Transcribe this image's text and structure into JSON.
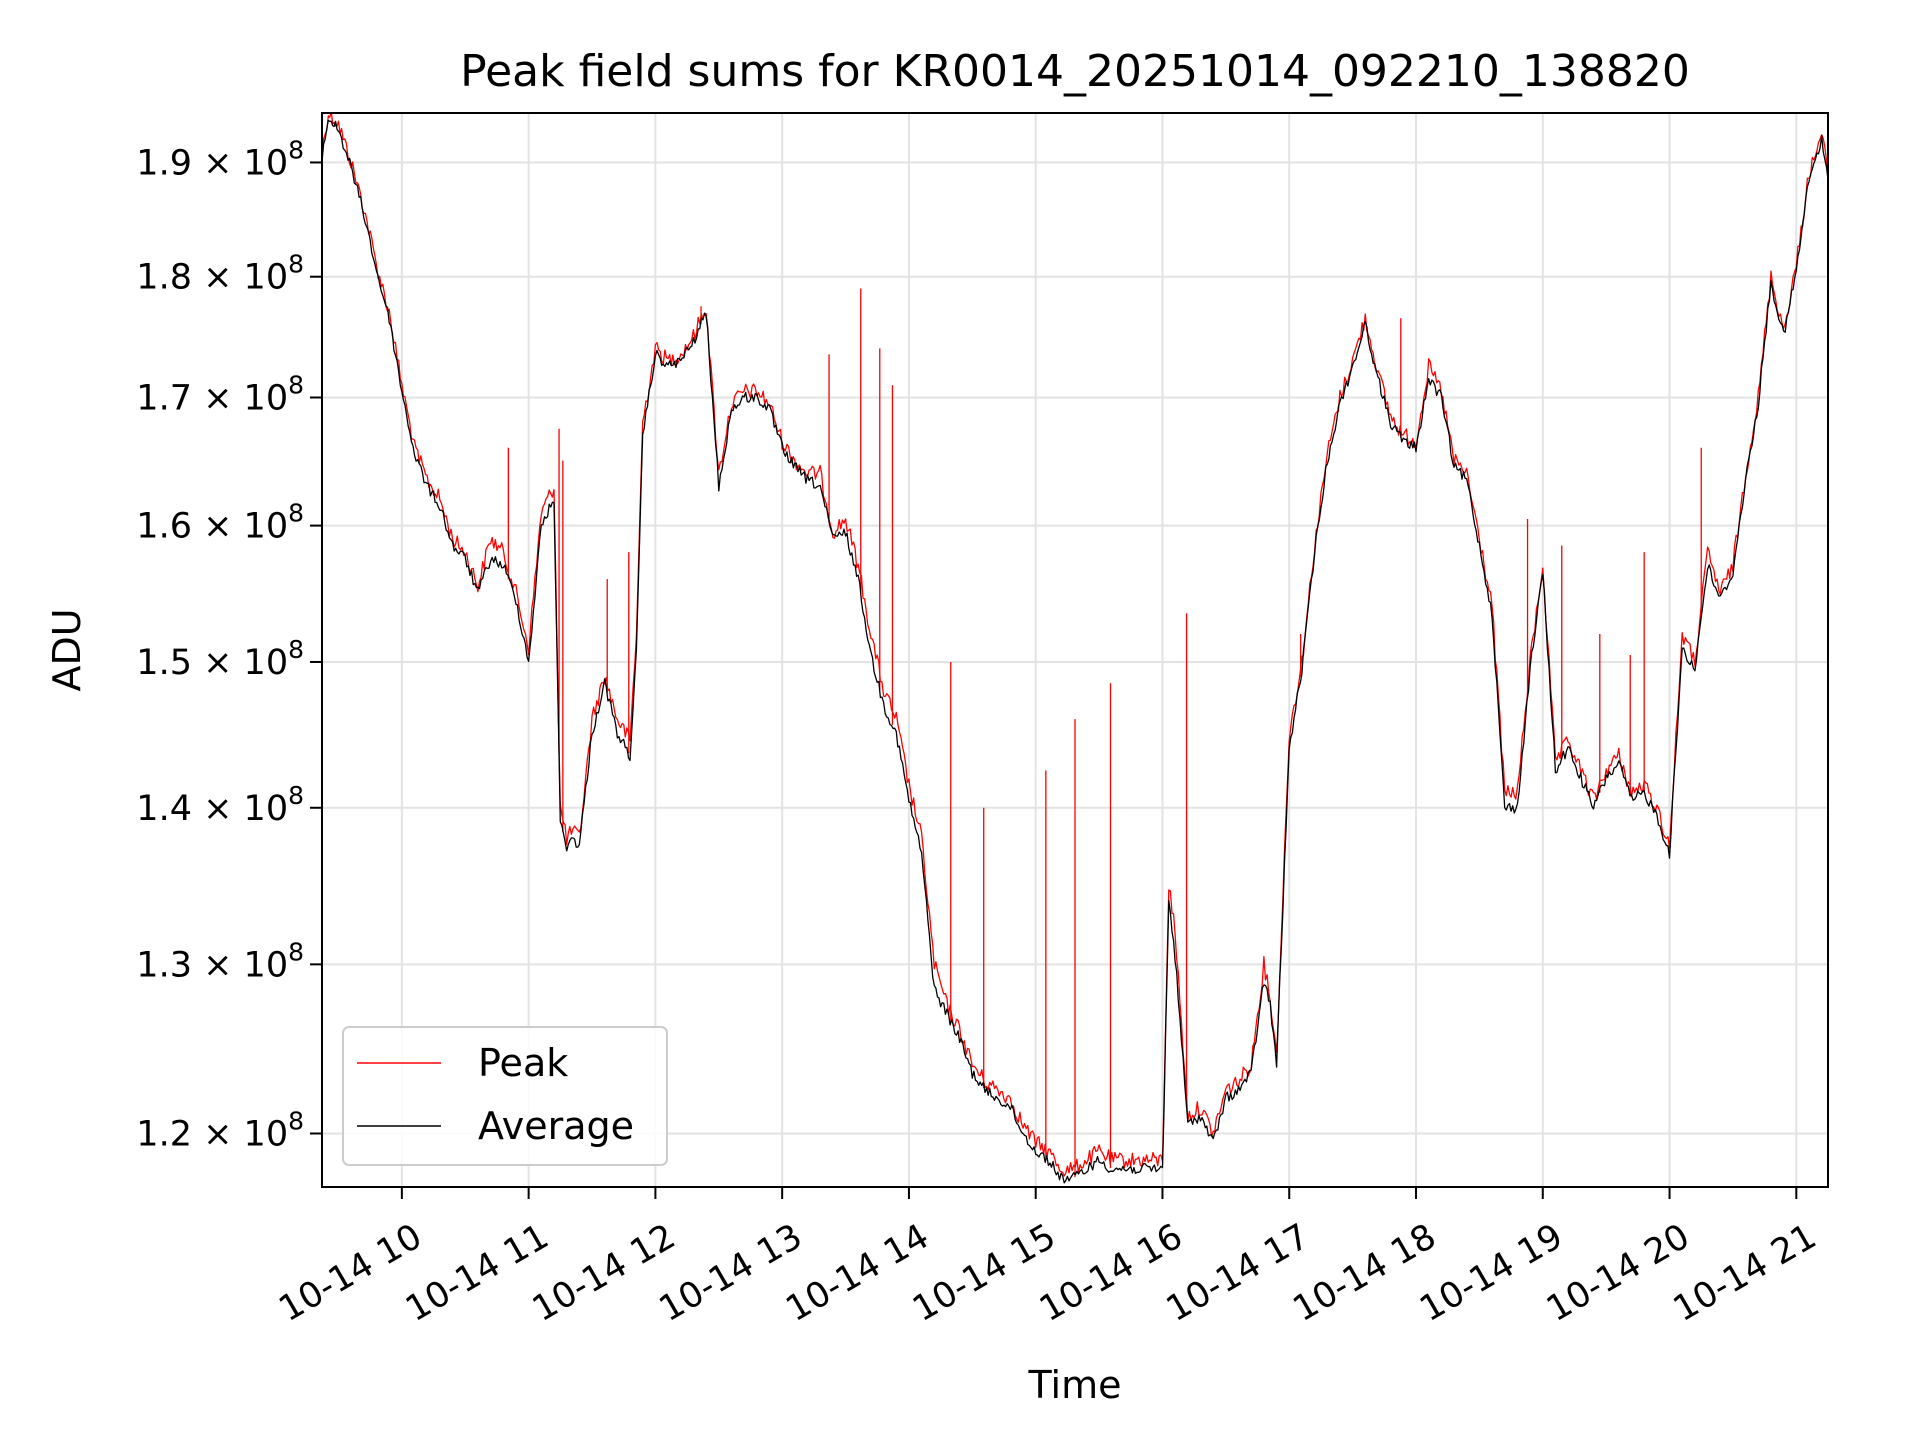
{
  "chart_data": {
    "type": "line",
    "title": "Peak field sums for KR0014_20251014_092210_138820",
    "xlabel": "Time",
    "ylabel": "ADU",
    "yscale": "log",
    "ylim": [
      117000000,
      194500000
    ],
    "xlim": [
      9.37,
      21.25
    ],
    "grid": true,
    "legend_placement": "lower-left",
    "x_ticks": [
      {
        "value": 10,
        "label": "10-14 10"
      },
      {
        "value": 11,
        "label": "10-14 11"
      },
      {
        "value": 12,
        "label": "10-14 12"
      },
      {
        "value": 13,
        "label": "10-14 13"
      },
      {
        "value": 14,
        "label": "10-14 14"
      },
      {
        "value": 15,
        "label": "10-14 15"
      },
      {
        "value": 16,
        "label": "10-14 16"
      },
      {
        "value": 17,
        "label": "10-14 17"
      },
      {
        "value": 18,
        "label": "10-14 18"
      },
      {
        "value": 19,
        "label": "10-14 19"
      },
      {
        "value": 20,
        "label": "10-14 20"
      },
      {
        "value": 21,
        "label": "10-14 21"
      }
    ],
    "y_ticks": [
      {
        "value": 120000000,
        "mantissa": "1.2",
        "times": "×",
        "base": "10",
        "exp": "8"
      },
      {
        "value": 130000000,
        "mantissa": "1.3",
        "times": "×",
        "base": "10",
        "exp": "8"
      },
      {
        "value": 140000000,
        "mantissa": "1.4",
        "times": "×",
        "base": "10",
        "exp": "8"
      },
      {
        "value": 150000000,
        "mantissa": "1.5",
        "times": "×",
        "base": "10",
        "exp": "8"
      },
      {
        "value": 160000000,
        "mantissa": "1.6",
        "times": "×",
        "base": "10",
        "exp": "8"
      },
      {
        "value": 170000000,
        "mantissa": "1.7",
        "times": "×",
        "base": "10",
        "exp": "8"
      },
      {
        "value": 180000000,
        "mantissa": "1.8",
        "times": "×",
        "base": "10",
        "exp": "8"
      },
      {
        "value": 190000000,
        "mantissa": "1.9",
        "times": "×",
        "base": "10",
        "exp": "8"
      }
    ],
    "series": [
      {
        "name": "Peak",
        "color": "#ff0000",
        "x": [
          9.37,
          9.42,
          9.5,
          9.6,
          9.7,
          9.8,
          9.9,
          10.0,
          10.1,
          10.2,
          10.3,
          10.4,
          10.5,
          10.6,
          10.7,
          10.8,
          10.9,
          11.0,
          11.1,
          11.2,
          11.25,
          11.3,
          11.35,
          11.4,
          11.5,
          11.6,
          11.7,
          11.8,
          11.85,
          11.9,
          12.0,
          12.1,
          12.2,
          12.3,
          12.4,
          12.5,
          12.6,
          12.7,
          12.8,
          12.9,
          13.0,
          13.1,
          13.2,
          13.3,
          13.4,
          13.5,
          13.6,
          13.7,
          13.8,
          13.9,
          14.0,
          14.1,
          14.2,
          14.3,
          14.4,
          14.5,
          14.6,
          14.7,
          14.8,
          14.9,
          15.0,
          15.1,
          15.2,
          15.3,
          15.4,
          15.5,
          15.6,
          15.7,
          15.8,
          15.9,
          16.0,
          16.05,
          16.1,
          16.2,
          16.3,
          16.4,
          16.5,
          16.6,
          16.7,
          16.8,
          16.85,
          16.9,
          17.0,
          17.1,
          17.2,
          17.3,
          17.4,
          17.5,
          17.6,
          17.7,
          17.8,
          17.9,
          18.0,
          18.1,
          18.2,
          18.3,
          18.4,
          18.5,
          18.6,
          18.7,
          18.8,
          18.9,
          19.0,
          19.1,
          19.2,
          19.3,
          19.4,
          19.5,
          19.6,
          19.7,
          19.8,
          19.9,
          20.0,
          20.1,
          20.2,
          20.3,
          20.4,
          20.5,
          20.6,
          20.7,
          20.8,
          20.9,
          21.0,
          21.1,
          21.2,
          21.25
        ],
        "y": [
          191000000,
          194500000,
          193500000,
          190000000,
          186000000,
          181000000,
          177000000,
          171000000,
          166000000,
          163500000,
          162000000,
          159000000,
          158000000,
          155500000,
          159000000,
          158000000,
          155000000,
          151000000,
          161000000,
          163000000,
          140000000,
          138000000,
          138500000,
          138000000,
          146000000,
          149000000,
          146000000,
          144500000,
          152000000,
          168000000,
          174000000,
          173000000,
          173500000,
          175000000,
          177500000,
          164000000,
          169500000,
          170500000,
          170500000,
          169500000,
          166500000,
          165000000,
          164000000,
          164000000,
          159500000,
          160500000,
          157000000,
          152000000,
          148000000,
          146000000,
          141500000,
          138000000,
          130000000,
          127500000,
          126000000,
          124000000,
          123000000,
          122500000,
          122000000,
          120500000,
          119500000,
          119000000,
          118000000,
          118000000,
          118500000,
          119000000,
          118500000,
          118500000,
          118500000,
          118500000,
          118500000,
          135000000,
          132000000,
          121000000,
          121500000,
          120000000,
          122500000,
          123000000,
          124000000,
          130000000,
          128000000,
          124500000,
          145000000,
          150000000,
          158500000,
          165500000,
          170000000,
          173000000,
          176500000,
          172000000,
          168500000,
          167000000,
          166500000,
          172500000,
          170500000,
          165000000,
          164000000,
          159000000,
          154000000,
          141000000,
          141000000,
          150000000,
          157000000,
          143000000,
          144500000,
          142500000,
          140500000,
          142500000,
          143500000,
          141000000,
          141500000,
          140000000,
          137500000,
          152000000,
          150000000,
          158000000,
          155000000,
          157000000,
          164000000,
          170000000,
          180000000,
          175500000,
          181000000,
          189000000,
          192500000,
          189000000
        ]
      },
      {
        "name": "Average",
        "color": "#000000",
        "x": [
          9.37,
          9.42,
          9.5,
          9.6,
          9.7,
          9.8,
          9.9,
          10.0,
          10.1,
          10.2,
          10.3,
          10.4,
          10.5,
          10.6,
          10.7,
          10.8,
          10.9,
          11.0,
          11.1,
          11.2,
          11.25,
          11.3,
          11.35,
          11.4,
          11.5,
          11.6,
          11.7,
          11.8,
          11.85,
          11.9,
          12.0,
          12.1,
          12.2,
          12.3,
          12.4,
          12.5,
          12.6,
          12.7,
          12.8,
          12.9,
          13.0,
          13.1,
          13.2,
          13.3,
          13.4,
          13.5,
          13.6,
          13.7,
          13.8,
          13.9,
          14.0,
          14.1,
          14.2,
          14.3,
          14.4,
          14.5,
          14.6,
          14.7,
          14.8,
          14.9,
          15.0,
          15.1,
          15.2,
          15.3,
          15.4,
          15.5,
          15.6,
          15.7,
          15.8,
          15.9,
          16.0,
          16.05,
          16.1,
          16.2,
          16.3,
          16.4,
          16.5,
          16.6,
          16.7,
          16.8,
          16.85,
          16.9,
          17.0,
          17.1,
          17.2,
          17.3,
          17.4,
          17.5,
          17.6,
          17.7,
          17.8,
          17.9,
          18.0,
          18.1,
          18.2,
          18.3,
          18.4,
          18.5,
          18.6,
          18.7,
          18.8,
          18.9,
          19.0,
          19.1,
          19.2,
          19.3,
          19.4,
          19.5,
          19.6,
          19.7,
          19.8,
          19.9,
          20.0,
          20.1,
          20.2,
          20.3,
          20.4,
          20.5,
          20.6,
          20.7,
          20.8,
          20.9,
          21.0,
          21.1,
          21.2,
          21.25
        ],
        "y": [
          190500000,
          194000000,
          193000000,
          189500000,
          185500000,
          180500000,
          176500000,
          170500000,
          165500000,
          163000000,
          161500000,
          158500000,
          157500000,
          155000000,
          157500000,
          157000000,
          154500000,
          150000000,
          160000000,
          162000000,
          139000000,
          137500000,
          138000000,
          137500000,
          145000000,
          148500000,
          145000000,
          143500000,
          150500000,
          167000000,
          173500000,
          172500000,
          173000000,
          174500000,
          177000000,
          163000000,
          169000000,
          170000000,
          170000000,
          169000000,
          166000000,
          164500000,
          163500000,
          163000000,
          159000000,
          159500000,
          156000000,
          150500000,
          147000000,
          145000000,
          140500000,
          137000000,
          128500000,
          127000000,
          125500000,
          123500000,
          122500000,
          122000000,
          121500000,
          120000000,
          119000000,
          118500000,
          117500000,
          117500000,
          118000000,
          118500000,
          118000000,
          118000000,
          118000000,
          118000000,
          118000000,
          134000000,
          130500000,
          120500000,
          121000000,
          119500000,
          122000000,
          122500000,
          123500000,
          129000000,
          127500000,
          124000000,
          144000000,
          149500000,
          158000000,
          165000000,
          169500000,
          172500000,
          176000000,
          171500000,
          168000000,
          166500000,
          166000000,
          171500000,
          170000000,
          164500000,
          163500000,
          158500000,
          153500000,
          140000000,
          140000000,
          149500000,
          156500000,
          142500000,
          144000000,
          142000000,
          140000000,
          142000000,
          143000000,
          140500000,
          141000000,
          139500000,
          137000000,
          151000000,
          149500000,
          157000000,
          154500000,
          156500000,
          163500000,
          169500000,
          179500000,
          175000000,
          180500000,
          188500000,
          192000000,
          188500000
        ]
      }
    ],
    "spikes": {
      "series": "Peak",
      "x": [
        10.84,
        11.24,
        11.27,
        11.62,
        11.79,
        12.36,
        13.37,
        13.62,
        13.77,
        13.87,
        14.33,
        14.59,
        15.08,
        15.31,
        15.59,
        16.19,
        17.09,
        17.88,
        18.88,
        19.15,
        19.45,
        19.69,
        19.8,
        20.25
      ],
      "y": [
        166000000,
        167500000,
        165000000,
        156000000,
        158000000,
        177500000,
        173500000,
        179000000,
        174000000,
        171000000,
        150000000,
        140000000,
        142500000,
        146000000,
        148500000,
        153500000,
        152000000,
        176500000,
        160500000,
        158500000,
        152000000,
        150500000,
        158000000,
        166000000
      ]
    }
  }
}
